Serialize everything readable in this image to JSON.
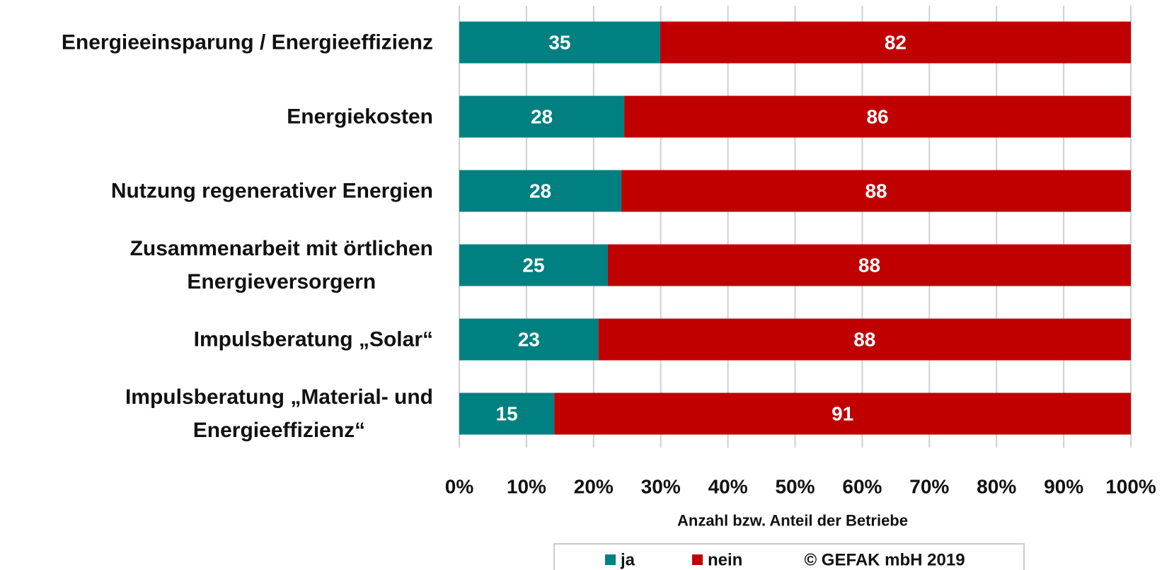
{
  "chart_data": {
    "type": "bar",
    "orientation": "horizontal",
    "stacking": "percent",
    "categories": [
      "Energieeinsparung / Energieeffizienz",
      "Energiekosten",
      "Nutzung regenerativer Energien",
      "Zusammenarbeit mit örtlichen\nEnergieversorgern",
      "Impulsberatung  „Solar“",
      "Impulsberatung  „Material- und\nEnergieeffizienz“"
    ],
    "series": [
      {
        "name": "ja",
        "color": "#008080",
        "values": [
          35,
          28,
          28,
          25,
          23,
          15
        ]
      },
      {
        "name": "nein",
        "color": "#c00000",
        "values": [
          82,
          86,
          88,
          88,
          88,
          91
        ]
      }
    ],
    "xlim": [
      0,
      100
    ],
    "xticks": [
      {
        "value": 0,
        "label": "0%"
      },
      {
        "value": 10,
        "label": "10%"
      },
      {
        "value": 20,
        "label": "20%"
      },
      {
        "value": 30,
        "label": "30%"
      },
      {
        "value": 40,
        "label": "40%"
      },
      {
        "value": 50,
        "label": "50%"
      },
      {
        "value": 60,
        "label": "60%"
      },
      {
        "value": 70,
        "label": "70%"
      },
      {
        "value": 80,
        "label": "80%"
      },
      {
        "value": 90,
        "label": "90%"
      },
      {
        "value": 100,
        "label": "100%"
      }
    ],
    "xlabel": "Anzahl bzw. Anteil der Betriebe",
    "copyright": "© GEFAK mbH 2019",
    "grid": true,
    "legend": "bottom"
  }
}
